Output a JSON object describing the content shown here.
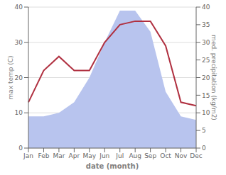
{
  "chart_data": {
    "type": "line",
    "categories": [
      "Jan",
      "Feb",
      "Mar",
      "Apr",
      "May",
      "Jun",
      "Jul",
      "Aug",
      "Sep",
      "Oct",
      "Nov",
      "Dec"
    ],
    "series": [
      {
        "type": "area",
        "axis": "y2",
        "color": "#b8c4ee",
        "values": [
          9,
          9,
          10,
          13,
          20,
          30,
          39,
          39,
          33,
          16,
          9,
          8
        ]
      },
      {
        "type": "line",
        "color": "#b03040",
        "values": [
          13,
          22,
          26,
          22,
          22,
          30,
          35,
          36,
          36,
          29,
          13,
          12
        ]
      }
    ],
    "xlabel": "date (month)",
    "ylabel": "max temp (C)",
    "y2label": "med. precipitation (kg/m2)",
    "ylim": [
      0,
      40
    ],
    "yticks": [
      0,
      10,
      20,
      30,
      40
    ],
    "y2lim": [
      0,
      40
    ],
    "y2ticks": [
      0,
      5,
      10,
      15,
      20,
      25,
      30,
      35,
      40
    ],
    "grid": true
  }
}
